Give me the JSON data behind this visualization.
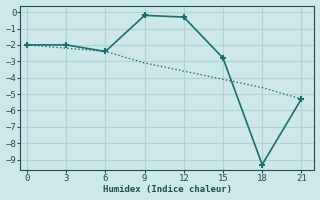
{
  "xlabel": "Humidex (Indice chaleur)",
  "ylabel": "",
  "bg_color": "#cce8e8",
  "grid_color": "#b0d8d8",
  "line_color": "#1a6e6e",
  "line1_x": [
    0,
    3,
    6,
    9,
    12,
    15,
    18,
    21
  ],
  "line1_y": [
    -2,
    -2,
    -2.4,
    -0.2,
    -0.3,
    -2.8,
    -9.3,
    -5.3
  ],
  "line2_x": [
    0,
    3,
    6,
    9,
    12,
    15,
    18,
    21
  ],
  "line2_y": [
    -2,
    -2.2,
    -2.4,
    -3.1,
    -3.6,
    -4.1,
    -4.6,
    -5.3
  ],
  "xlim": [
    -0.5,
    22
  ],
  "ylim": [
    -9.6,
    0.4
  ],
  "xticks": [
    0,
    3,
    6,
    9,
    12,
    15,
    18,
    21
  ],
  "yticks": [
    0,
    -1,
    -2,
    -3,
    -4,
    -5,
    -6,
    -7,
    -8,
    -9
  ]
}
